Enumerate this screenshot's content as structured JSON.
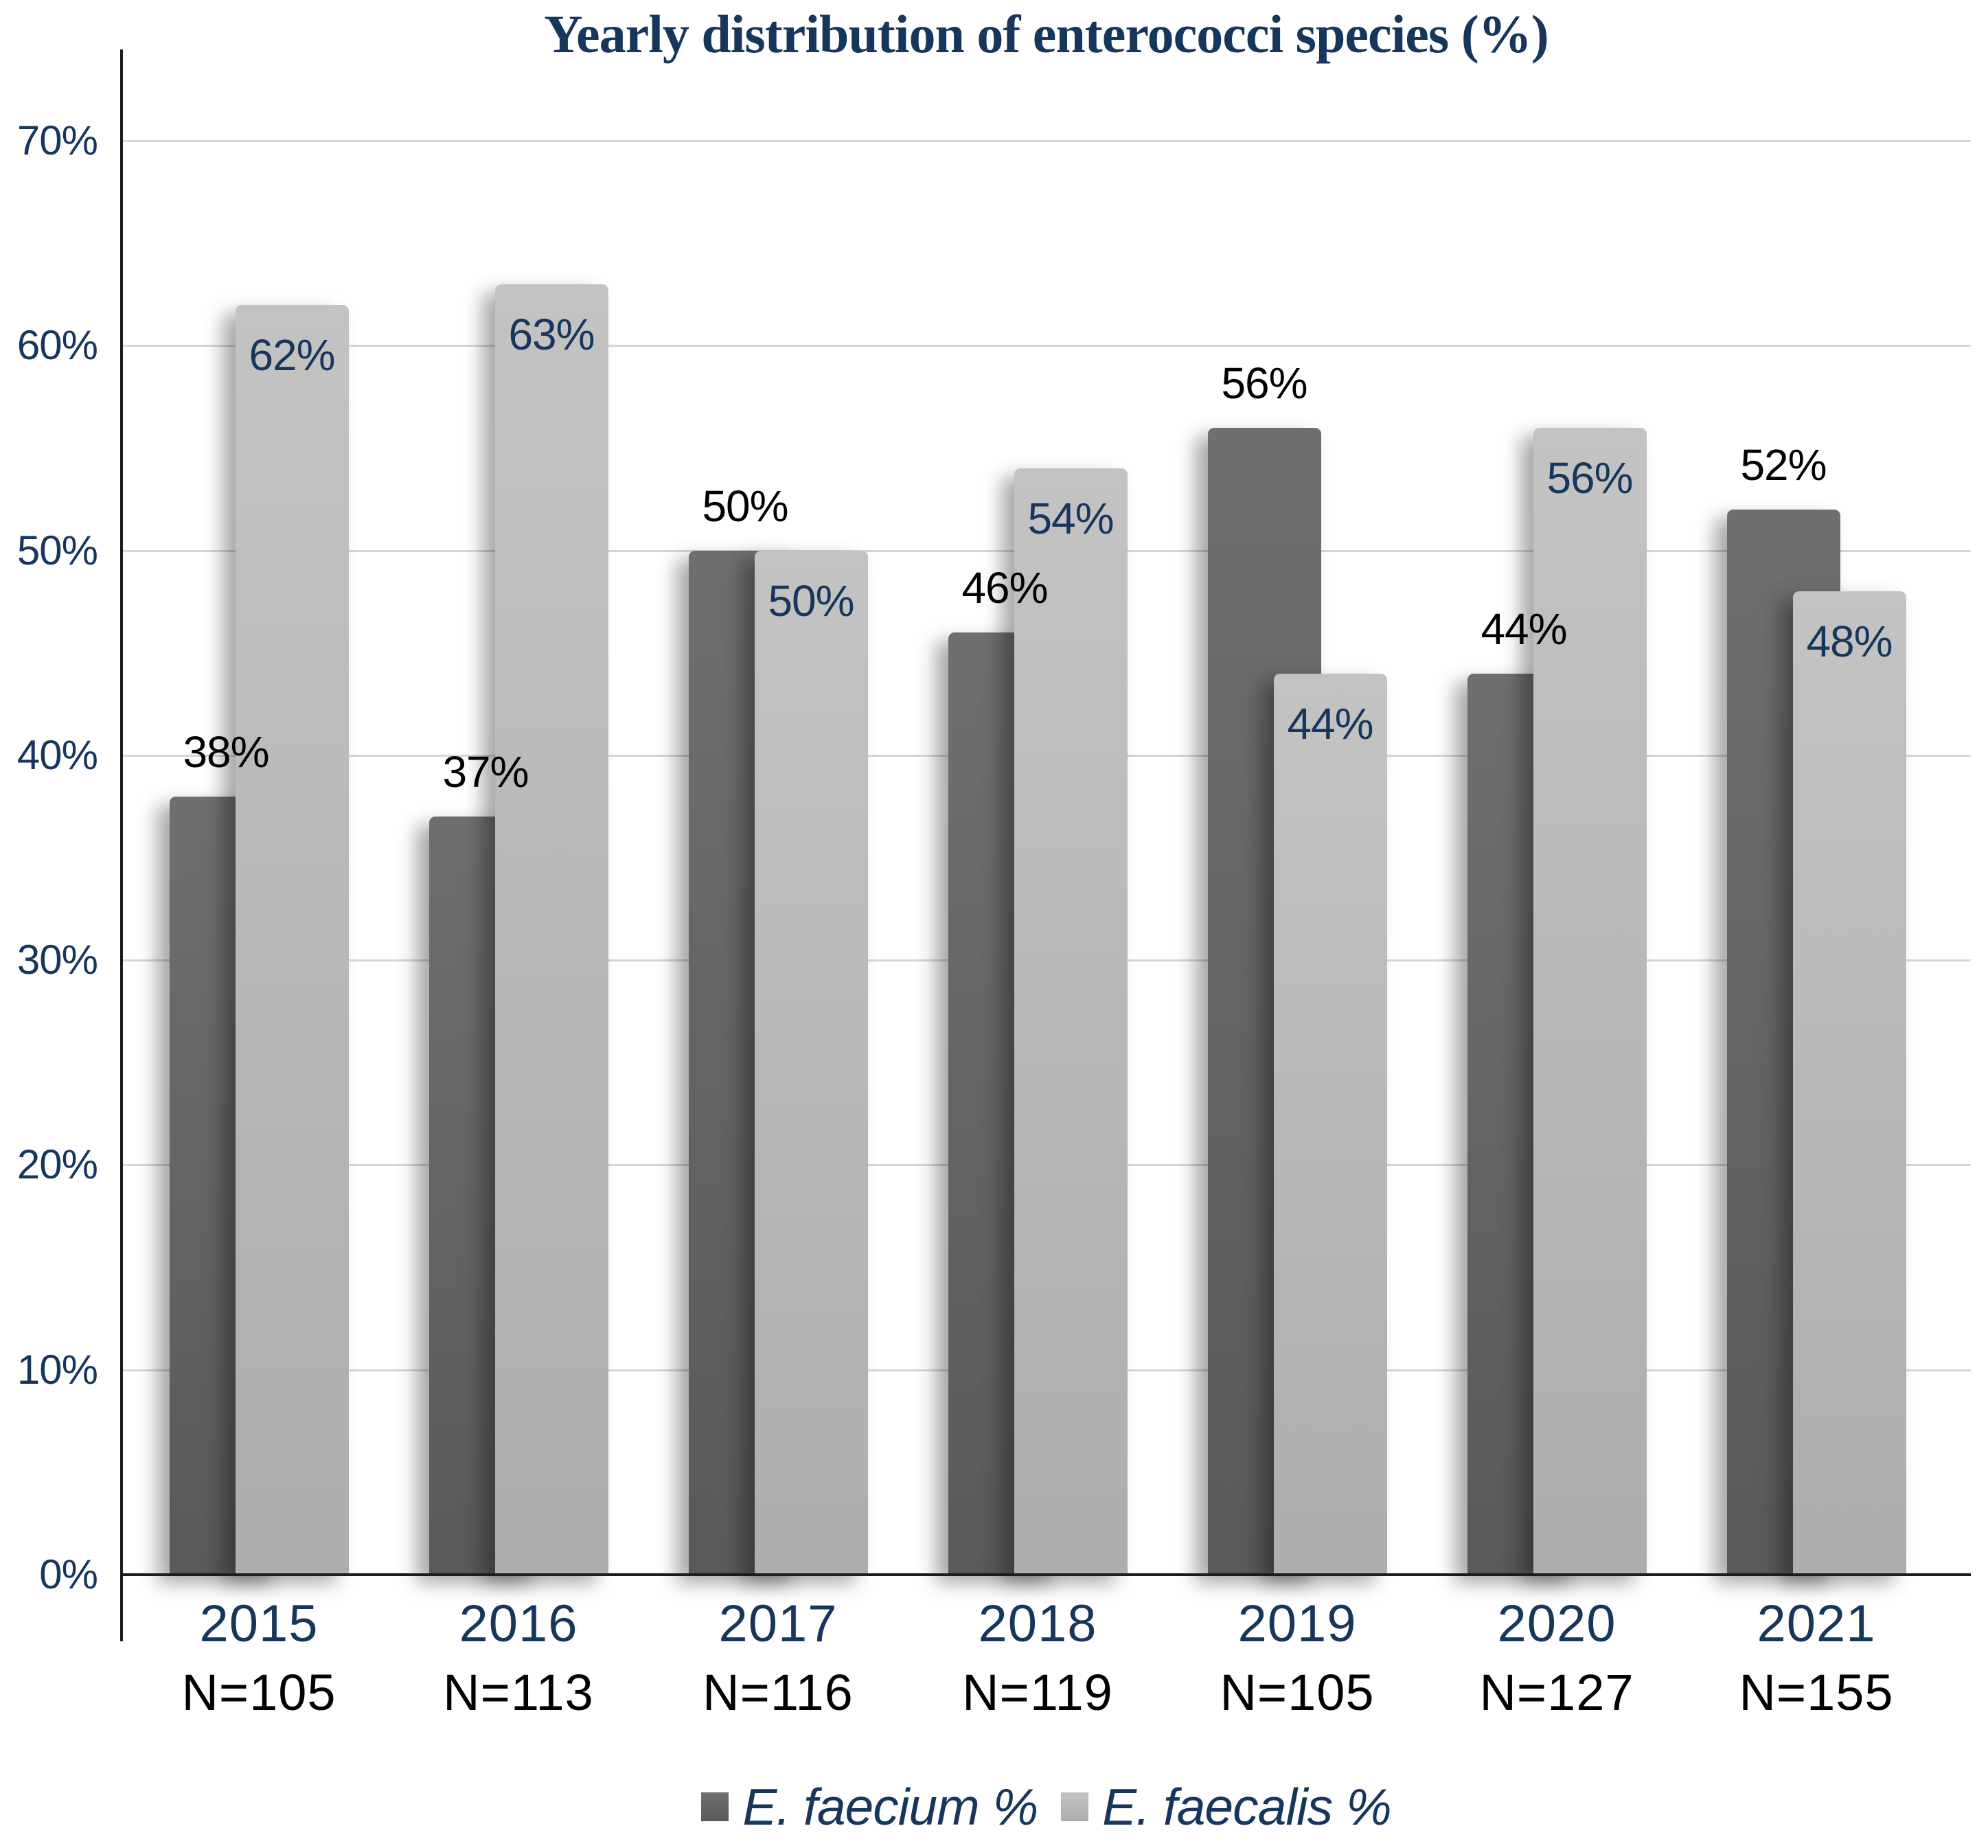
{
  "chart_data": {
    "type": "bar",
    "title": "Yearly distribution of enterococci species (%)",
    "categories": [
      "2015",
      "2016",
      "2017",
      "2018",
      "2019",
      "2020",
      "2021"
    ],
    "n_labels": [
      "N=105",
      "N=113",
      "N=116",
      "N=119",
      "N=105",
      "N=127",
      "N=155"
    ],
    "series": [
      {
        "name": "E. faecium %",
        "values": [
          38,
          37,
          50,
          46,
          56,
          44,
          52
        ],
        "value_labels": [
          "38%",
          "37%",
          "50%",
          "46%",
          "56%",
          "44%",
          "52%"
        ],
        "color": "#666666",
        "label_color": "#000000",
        "label_placement": "above"
      },
      {
        "name": "E. faecalis %",
        "values": [
          62,
          63,
          50,
          54,
          44,
          56,
          48
        ],
        "value_labels": [
          "62%",
          "63%",
          "50%",
          "54%",
          "44%",
          "56%",
          "48%"
        ],
        "color": "#b5b5b5",
        "label_color": "#17365d",
        "label_placement": "inside"
      }
    ],
    "y_ticks": [
      "0%",
      "10%",
      "20%",
      "30%",
      "40%",
      "50%",
      "60%",
      "70%"
    ],
    "ylim": [
      0,
      70
    ],
    "grid": true,
    "legend_position": "bottom"
  },
  "colors": {
    "navy": "#17365d",
    "black": "#000000",
    "dark_bar": "#666666",
    "light_bar": "#b5b5b5",
    "gridline": "#d6d6d6",
    "axis": "#1c1c1c"
  }
}
